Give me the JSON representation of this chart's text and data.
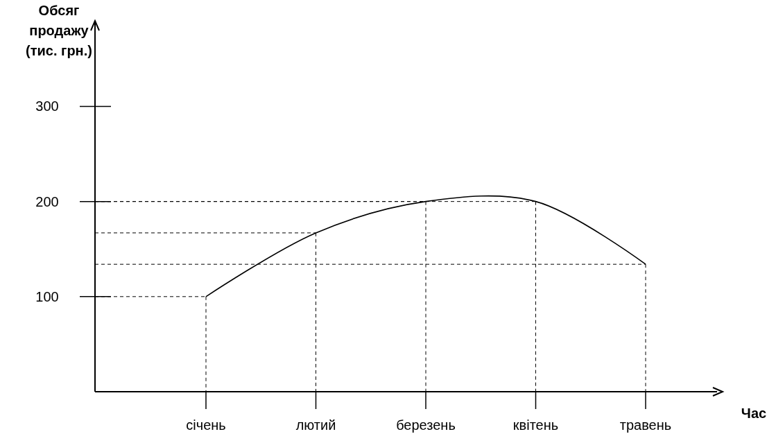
{
  "chart_data": {
    "type": "line",
    "ylabel": "Обсяг продажу (тис. грн.)",
    "xlabel": "Час",
    "categories": [
      "січень",
      "лютий",
      "березень",
      "квітень",
      "травень"
    ],
    "series": [
      {
        "color": "#000000",
        "values": [
          100,
          167,
          200,
          200,
          134
        ]
      }
    ],
    "ylim": [
      0,
      390
    ],
    "yticks": [
      100,
      200,
      300
    ],
    "marker": "none",
    "line_style": "solid"
  }
}
